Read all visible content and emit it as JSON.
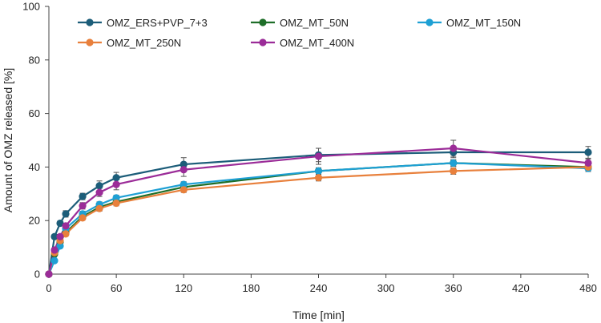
{
  "chart_data": {
    "type": "line",
    "title": "",
    "xlabel": "Time [min]",
    "ylabel": "Amount of OMZ released [%]",
    "xlim": [
      0,
      480
    ],
    "ylim": [
      0,
      100
    ],
    "xticks": [
      0,
      60,
      120,
      180,
      240,
      300,
      360,
      420,
      480
    ],
    "yticks": [
      0,
      20,
      40,
      60,
      80,
      100
    ],
    "grid": false,
    "legend_position": "top",
    "x": [
      0,
      5,
      10,
      15,
      30,
      45,
      60,
      120,
      240,
      360,
      480
    ],
    "series": [
      {
        "name": "OMZ_ERS+PVP_7+3",
        "color": "#1c5d79",
        "values": [
          0,
          14,
          19,
          22.5,
          29,
          33,
          36,
          41,
          44.5,
          45.5,
          45.5
        ],
        "errors": [
          0,
          0.8,
          0.8,
          1.2,
          1.2,
          1.8,
          2,
          2.5,
          2.5,
          2,
          2.2
        ]
      },
      {
        "name": "OMZ_MT_50N",
        "color": "#1e6e28",
        "values": [
          0,
          7.5,
          12,
          15.5,
          21.5,
          25,
          27,
          32.5,
          38.5,
          41.5,
          40
        ],
        "errors": [
          0,
          0.5,
          0.6,
          0.8,
          1,
          1,
          1,
          1.2,
          1.2,
          1.2,
          1.2
        ]
      },
      {
        "name": "OMZ_MT_150N",
        "color": "#1ea0d4",
        "values": [
          0,
          5,
          10.5,
          17,
          22.5,
          26,
          28.5,
          33.5,
          38.5,
          41.5,
          39.5
        ],
        "errors": [
          0,
          0.5,
          0.6,
          0.8,
          1,
          1,
          1,
          1,
          1.2,
          1.2,
          1.2
        ]
      },
      {
        "name": "OMZ_MT_250N",
        "color": "#e8803c",
        "values": [
          0,
          8,
          12.5,
          15,
          21,
          24.5,
          26.5,
          31.5,
          36,
          38.5,
          40
        ],
        "errors": [
          0,
          0.5,
          0.5,
          0.8,
          0.8,
          1,
          1,
          1,
          1.2,
          1.2,
          1.2
        ]
      },
      {
        "name": "OMZ_MT_400N",
        "color": "#9b2c98",
        "values": [
          0,
          9,
          14,
          18,
          25.5,
          30.5,
          33.5,
          39,
          44,
          47,
          41.5
        ],
        "errors": [
          0,
          0.6,
          0.8,
          1,
          1.2,
          1.5,
          2,
          2.5,
          3,
          3,
          1.5
        ]
      }
    ]
  }
}
